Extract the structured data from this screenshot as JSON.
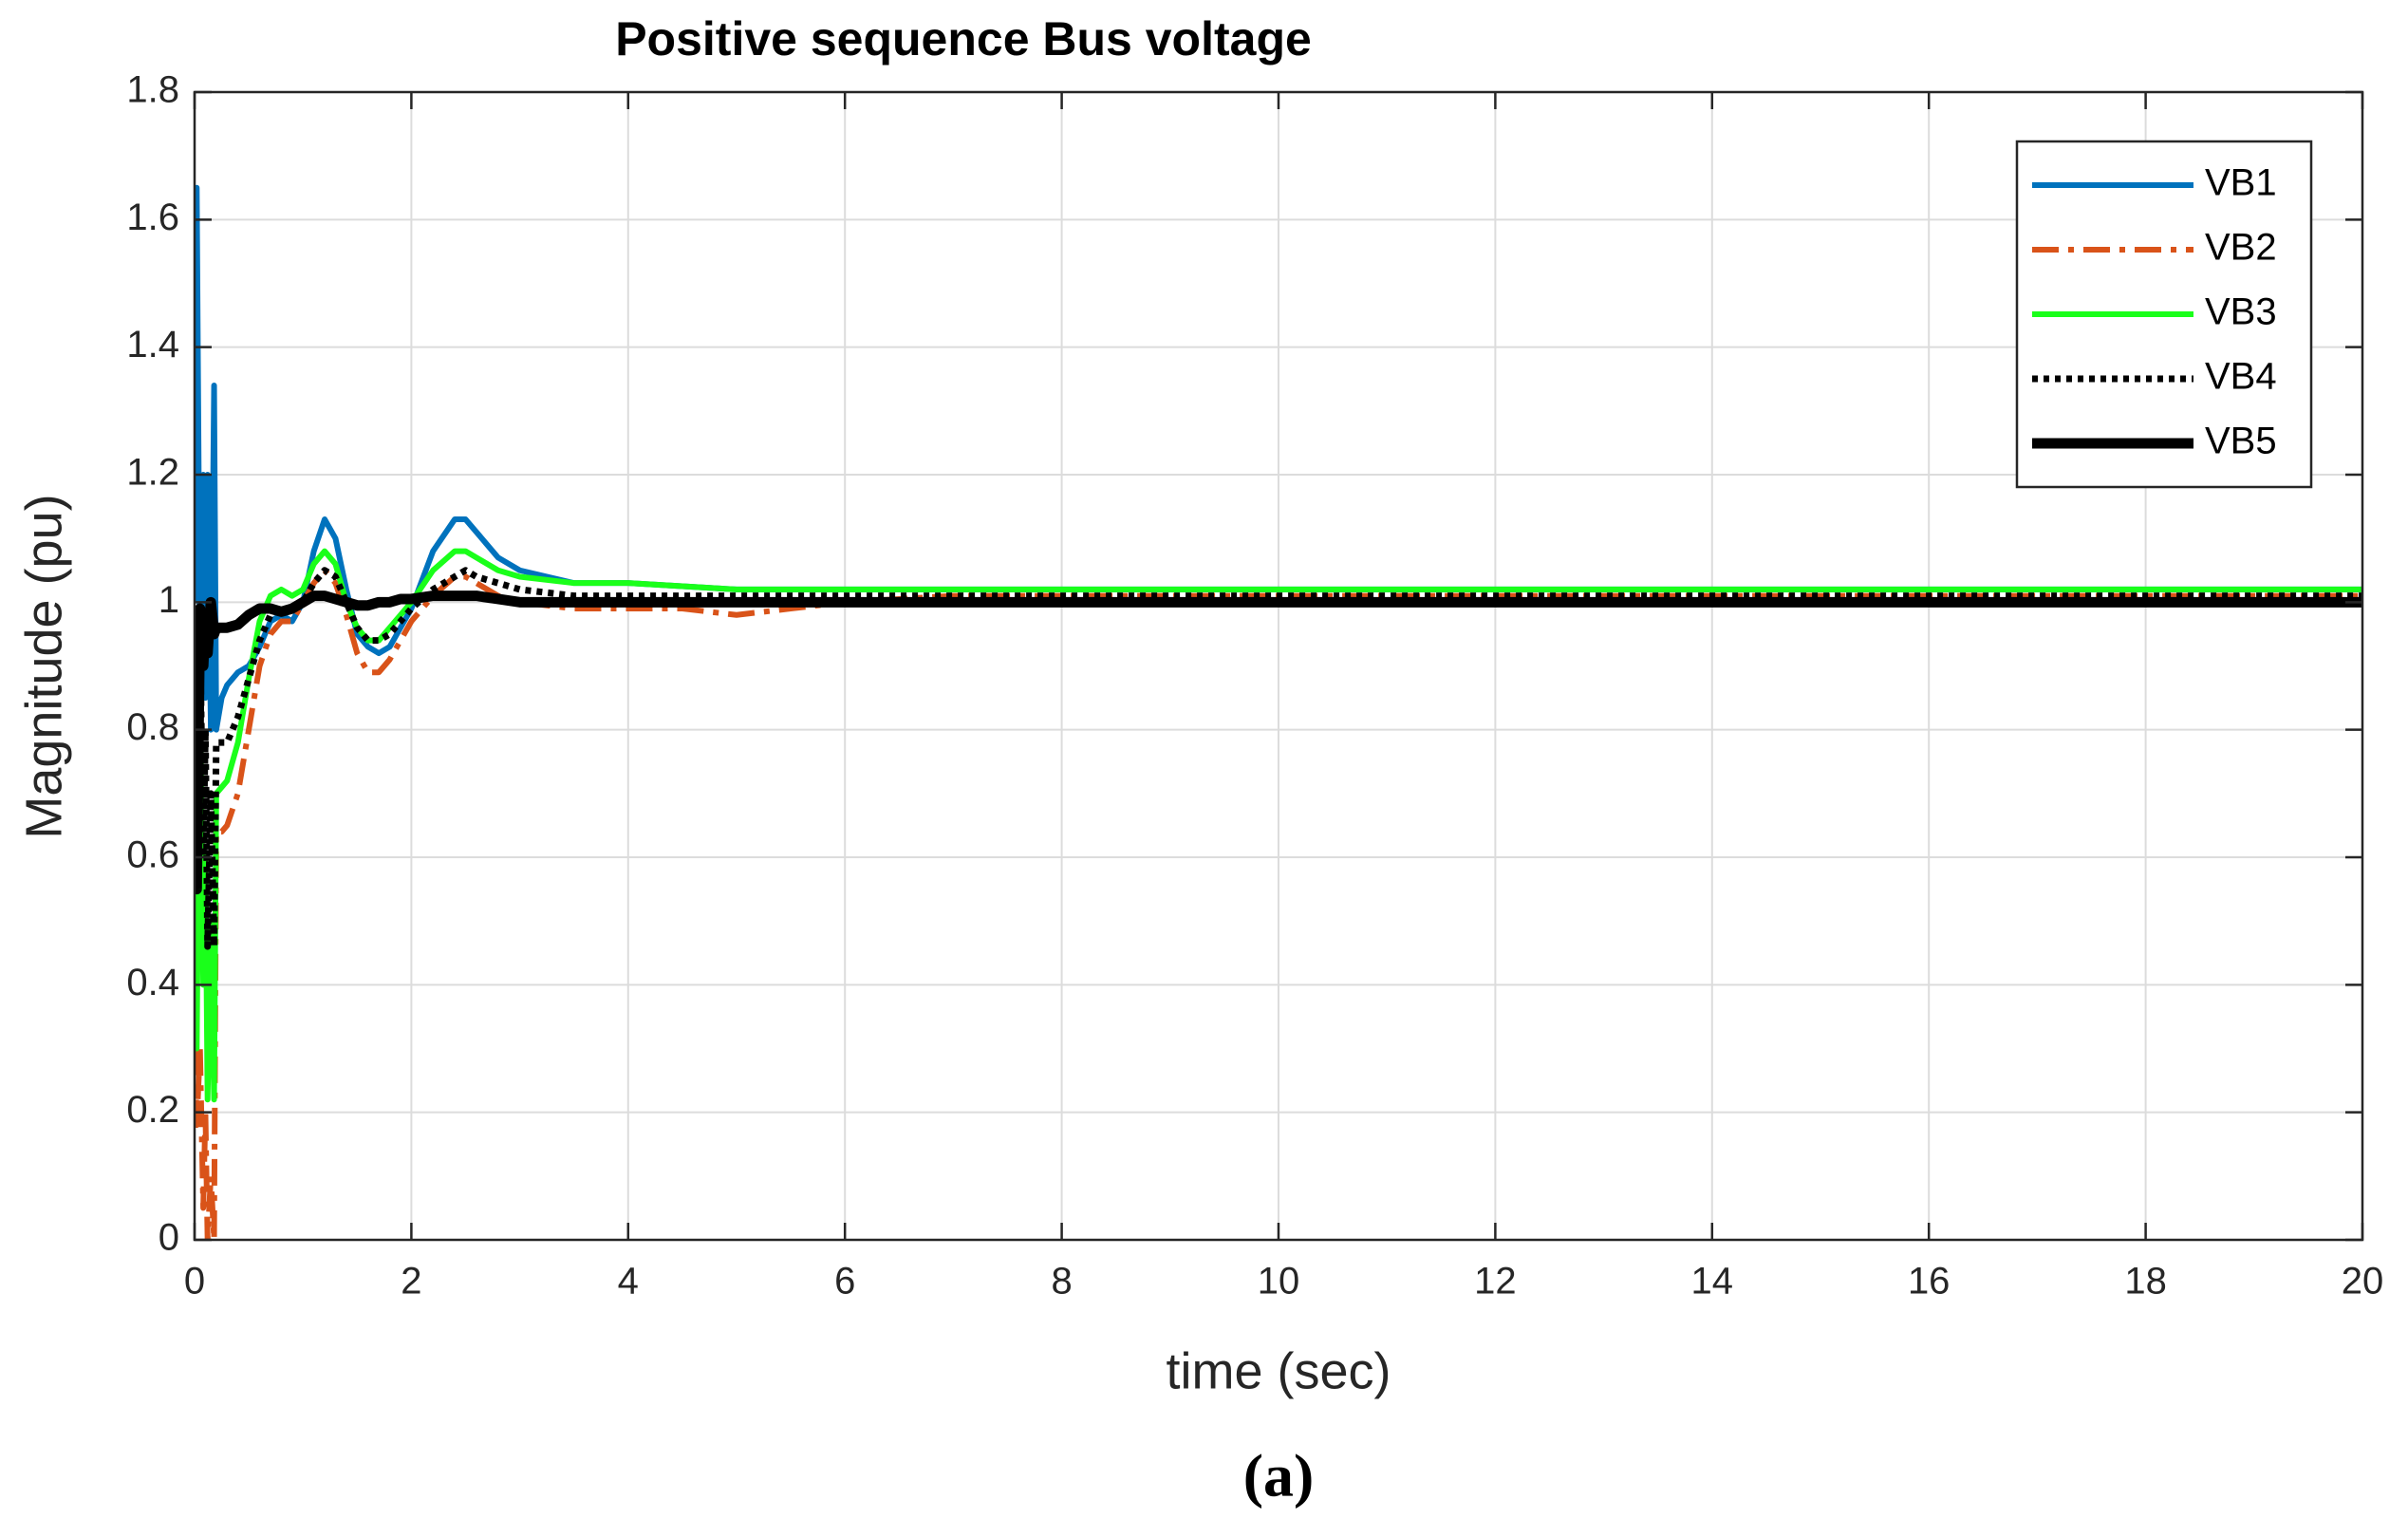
{
  "chart_data": {
    "type": "line",
    "title": "Positive sequence Bus voltage",
    "xlabel": "time (sec)",
    "ylabel": "Magnitude (pu)",
    "caption": "(a)",
    "grid": true,
    "legend": "upper right",
    "xlim": [
      0,
      20
    ],
    "xticks": [
      0,
      2,
      4,
      6,
      8,
      10,
      12,
      14,
      16,
      18,
      20
    ],
    "ylim": [
      0,
      1.8
    ],
    "yticks": [
      0,
      0.2,
      0.4,
      0.6,
      0.8,
      1,
      1.2,
      1.4,
      1.6,
      1.8
    ],
    "x": [
      0,
      0.02,
      0.05,
      0.08,
      0.1,
      0.12,
      0.15,
      0.18,
      0.2,
      0.25,
      0.3,
      0.4,
      0.5,
      0.6,
      0.7,
      0.8,
      0.9,
      1.0,
      1.1,
      1.2,
      1.3,
      1.4,
      1.5,
      1.6,
      1.7,
      1.8,
      1.9,
      2.0,
      2.2,
      2.4,
      2.5,
      2.6,
      2.8,
      3.0,
      3.5,
      4,
      4.5,
      5,
      5.5,
      6,
      7,
      8,
      10,
      12,
      14,
      16,
      18,
      20
    ],
    "series": [
      {
        "name": "VB1",
        "color": "#0072bd",
        "linestyle": "solid",
        "linewidth": 6,
        "values": [
          1.0,
          1.65,
          0.9,
          1.2,
          0.85,
          1.2,
          0.8,
          1.34,
          0.8,
          0.85,
          0.87,
          0.89,
          0.9,
          0.93,
          0.97,
          0.98,
          0.97,
          1.0,
          1.08,
          1.13,
          1.1,
          1.02,
          0.95,
          0.93,
          0.92,
          0.93,
          0.96,
          0.99,
          1.08,
          1.13,
          1.13,
          1.11,
          1.07,
          1.05,
          1.03,
          1.03,
          1.025,
          1.02,
          1.02,
          1.02,
          1.02,
          1.02,
          1.02,
          1.02,
          1.02,
          1.02,
          1.02,
          1.02
        ]
      },
      {
        "name": "VB2",
        "color": "#d95319",
        "linestyle": "dashdot",
        "linewidth": 6,
        "values": [
          0.3,
          0.18,
          0.3,
          0.05,
          0.2,
          0,
          0.1,
          0,
          0.64,
          0.64,
          0.65,
          0.7,
          0.8,
          0.9,
          0.95,
          0.97,
          0.97,
          1.0,
          1.03,
          1.05,
          1.03,
          0.98,
          0.92,
          0.89,
          0.89,
          0.91,
          0.94,
          0.97,
          1.01,
          1.04,
          1.04,
          1.03,
          1.01,
          1.0,
          0.99,
          0.99,
          0.99,
          0.98,
          0.99,
          1.0,
          1.01,
          1.01,
          1.01,
          1.01,
          1.01,
          1.01,
          1.01,
          1.01
        ]
      },
      {
        "name": "VB3",
        "color": "#1aff1a",
        "linestyle": "solid",
        "linewidth": 6,
        "values": [
          0.5,
          0.3,
          0.9,
          0.4,
          0.6,
          0.22,
          0.5,
          0.22,
          0.7,
          0.71,
          0.72,
          0.78,
          0.88,
          0.97,
          1.01,
          1.02,
          1.01,
          1.02,
          1.06,
          1.08,
          1.06,
          1.0,
          0.96,
          0.94,
          0.94,
          0.96,
          0.98,
          1.0,
          1.05,
          1.08,
          1.08,
          1.07,
          1.05,
          1.04,
          1.03,
          1.03,
          1.025,
          1.02,
          1.02,
          1.02,
          1.02,
          1.02,
          1.02,
          1.02,
          1.02,
          1.02,
          1.02,
          1.02
        ]
      },
      {
        "name": "VB4",
        "color": "#000000",
        "linestyle": "dotted",
        "linewidth": 7,
        "values": [
          0.7,
          0.6,
          0.95,
          0.6,
          0.8,
          0.46,
          0.7,
          0.46,
          0.78,
          0.78,
          0.78,
          0.82,
          0.88,
          0.94,
          0.98,
          0.99,
          0.99,
          1.0,
          1.03,
          1.05,
          1.04,
          1.0,
          0.96,
          0.94,
          0.94,
          0.95,
          0.97,
          0.99,
          1.02,
          1.04,
          1.05,
          1.04,
          1.03,
          1.02,
          1.01,
          1.01,
          1.01,
          1.01,
          1.01,
          1.01,
          1.01,
          1.01,
          1.01,
          1.01,
          1.01,
          1.01,
          1.01,
          1.01
        ]
      },
      {
        "name": "VB5",
        "color": "#000000",
        "linestyle": "solid",
        "linewidth": 11,
        "values": [
          0.95,
          0.55,
          0.99,
          0.9,
          0.98,
          0.92,
          1.0,
          0.95,
          0.96,
          0.96,
          0.96,
          0.965,
          0.98,
          0.99,
          0.99,
          0.985,
          0.99,
          1.0,
          1.01,
          1.01,
          1.005,
          1.0,
          0.995,
          0.995,
          1.0,
          1.0,
          1.005,
          1.005,
          1.01,
          1.01,
          1.01,
          1.01,
          1.005,
          1.0,
          1.0,
          1.0,
          1.0,
          1.0,
          1.0,
          1.0,
          1.0,
          1.0,
          1.0,
          1.0,
          1.0,
          1.0,
          1.0,
          1.0
        ]
      }
    ]
  }
}
